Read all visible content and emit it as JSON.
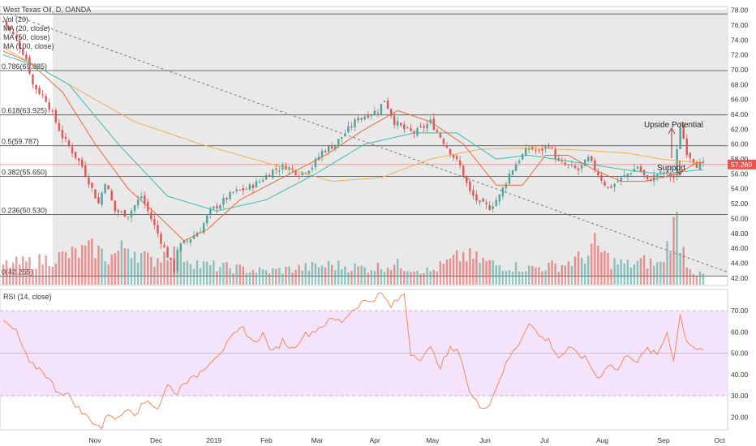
{
  "legend": {
    "title": "West Texas Oil, D, OANDA",
    "vol": "Vol (20)",
    "ma20": "MA (20, close)",
    "ma50": "MA (50, close)",
    "ma100": "MA (100, close)"
  },
  "rsi_title": "RSI (14, close)",
  "colors": {
    "up": "#4ea39a",
    "down": "#e05555",
    "ma20": "#f0673a",
    "ma50": "#3dbdb0",
    "ma100": "#f2b04f",
    "rsi_line": "#f08a5c",
    "rsi_band": "#f3e3fb",
    "price_badge": "#ef5350",
    "trend": "#777777",
    "shade": "#e9e9e9"
  },
  "chart_data": [
    {
      "type": "candlestick",
      "title": "West Texas Oil, D, OANDA",
      "x_months": [
        "Nov",
        "Dec",
        "2019",
        "Feb",
        "Mar",
        "Apr",
        "May",
        "Jun",
        "Jul",
        "Aug",
        "Sep",
        "Oct"
      ],
      "y_ticks": [
        "42.00",
        "44.00",
        "46.00",
        "48.00",
        "50.00",
        "52.00",
        "54.00",
        "56.00",
        "58.00",
        "60.00",
        "62.00",
        "64.00",
        "66.00",
        "68.00",
        "70.00",
        "72.00",
        "74.00",
        "76.00",
        "78.00"
      ],
      "ylim": [
        41,
        78.5
      ],
      "current_price": "57.260",
      "fib_levels": [
        {
          "label": "0.786(69.885)",
          "value": 69.885
        },
        {
          "label": "0.618(63.925)",
          "value": 63.925
        },
        {
          "label": "0.5(59.787)",
          "value": 59.787
        },
        {
          "label": "0.382(55.650)",
          "value": 55.65
        },
        {
          "label": "0.236(50.530)",
          "value": 50.53
        },
        {
          "label": "0(42.255)",
          "value": 42.255
        },
        {
          "label": "",
          "value": 77.5
        }
      ],
      "annotations": [
        "Upside Potential",
        "Support"
      ],
      "close_path": [
        [
          0,
          76.5
        ],
        [
          4,
          74
        ],
        [
          7,
          71.5
        ],
        [
          9,
          68
        ],
        [
          13,
          66
        ],
        [
          18,
          61
        ],
        [
          24,
          57
        ],
        [
          29,
          52
        ],
        [
          31,
          55
        ],
        [
          34,
          51
        ],
        [
          38,
          50.5
        ],
        [
          42,
          53
        ],
        [
          45,
          50
        ],
        [
          48,
          47
        ],
        [
          50,
          45
        ],
        [
          52,
          43
        ],
        [
          53,
          46
        ],
        [
          56,
          47
        ],
        [
          60,
          48.5
        ],
        [
          63,
          51
        ],
        [
          66,
          52
        ],
        [
          70,
          53.5
        ],
        [
          74,
          54
        ],
        [
          78,
          55
        ],
        [
          82,
          56.5
        ],
        [
          86,
          57
        ],
        [
          90,
          56
        ],
        [
          94,
          57
        ],
        [
          97,
          59
        ],
        [
          101,
          60
        ],
        [
          105,
          62
        ],
        [
          108,
          63.5
        ],
        [
          111,
          64
        ],
        [
          114,
          64.5
        ],
        [
          116,
          66
        ],
        [
          119,
          63
        ],
        [
          122,
          62
        ],
        [
          125,
          61.5
        ],
        [
          127,
          62
        ],
        [
          130,
          63
        ],
        [
          133,
          61
        ],
        [
          136,
          59
        ],
        [
          139,
          57
        ],
        [
          142,
          53.5
        ],
        [
          145,
          52
        ],
        [
          148,
          51.5
        ],
        [
          151,
          53
        ],
        [
          154,
          56
        ],
        [
          157,
          58
        ],
        [
          160,
          59.5
        ],
        [
          163,
          59
        ],
        [
          166,
          60
        ],
        [
          169,
          57.5
        ],
        [
          172,
          57
        ],
        [
          175,
          56.5
        ],
        [
          178,
          58
        ],
        [
          181,
          56
        ],
        [
          184,
          54
        ],
        [
          187,
          55
        ],
        [
          190,
          56
        ],
        [
          193,
          57
        ],
        [
          196,
          55
        ],
        [
          199,
          56
        ],
        [
          202,
          56
        ],
        [
          204,
          55.5
        ],
        [
          206,
          62.5
        ],
        [
          208,
          59
        ],
        [
          211,
          57.26
        ]
      ],
      "volume": [
        [
          0,
          0.3
        ],
        [
          10,
          0.35
        ],
        [
          20,
          0.45
        ],
        [
          28,
          0.55
        ],
        [
          32,
          0.4
        ],
        [
          38,
          0.6
        ],
        [
          45,
          0.35
        ],
        [
          50,
          0.5
        ],
        [
          55,
          0.45
        ],
        [
          60,
          0.3
        ],
        [
          70,
          0.25
        ],
        [
          80,
          0.2
        ],
        [
          90,
          0.25
        ],
        [
          100,
          0.3
        ],
        [
          110,
          0.25
        ],
        [
          120,
          0.3
        ],
        [
          130,
          0.2
        ],
        [
          140,
          0.45
        ],
        [
          150,
          0.3
        ],
        [
          160,
          0.25
        ],
        [
          170,
          0.3
        ],
        [
          178,
          0.45
        ],
        [
          180,
          0.6
        ],
        [
          185,
          0.35
        ],
        [
          190,
          0.3
        ],
        [
          195,
          0.35
        ],
        [
          200,
          0.3
        ],
        [
          205,
          1.0
        ],
        [
          206,
          0.7
        ],
        [
          208,
          0.35
        ],
        [
          211,
          0.15
        ]
      ],
      "ma100_path": [
        [
          0,
          73
        ],
        [
          8,
          71
        ],
        [
          20,
          68
        ],
        [
          40,
          63
        ],
        [
          60,
          60
        ],
        [
          80,
          57.5
        ],
        [
          100,
          55
        ],
        [
          115,
          55.5
        ],
        [
          130,
          58
        ],
        [
          145,
          59.3
        ],
        [
          160,
          59.5
        ],
        [
          175,
          59.2
        ],
        [
          190,
          58.8
        ],
        [
          200,
          58
        ],
        [
          211,
          57.5
        ]
      ],
      "ma50_path": [
        [
          0,
          72
        ],
        [
          10,
          70.5
        ],
        [
          20,
          68
        ],
        [
          35,
          60
        ],
        [
          50,
          53
        ],
        [
          65,
          51
        ],
        [
          80,
          52.5
        ],
        [
          95,
          56
        ],
        [
          110,
          60
        ],
        [
          125,
          61.5
        ],
        [
          138,
          61.5
        ],
        [
          150,
          58
        ],
        [
          160,
          58.5
        ],
        [
          175,
          57.5
        ],
        [
          190,
          56.5
        ],
        [
          200,
          56
        ],
        [
          211,
          56.5
        ]
      ],
      "ma20_path": [
        [
          0,
          72.5
        ],
        [
          8,
          71
        ],
        [
          18,
          67
        ],
        [
          28,
          60
        ],
        [
          38,
          54
        ],
        [
          48,
          50
        ],
        [
          55,
          47
        ],
        [
          62,
          48.5
        ],
        [
          72,
          52.5
        ],
        [
          85,
          55.5
        ],
        [
          98,
          58.5
        ],
        [
          110,
          62
        ],
        [
          120,
          64.5
        ],
        [
          130,
          63
        ],
        [
          140,
          60
        ],
        [
          150,
          54.5
        ],
        [
          158,
          54.5
        ],
        [
          165,
          58.5
        ],
        [
          172,
          58.5
        ],
        [
          180,
          56.5
        ],
        [
          188,
          55
        ],
        [
          195,
          55
        ],
        [
          200,
          55.5
        ],
        [
          205,
          56
        ],
        [
          211,
          57.5
        ]
      ]
    },
    {
      "type": "line",
      "title": "RSI (14, close)",
      "y_ticks": [
        "20.00",
        "30.00",
        "40.00",
        "50.00",
        "60.00",
        "70.00"
      ],
      "ylim": [
        14,
        80
      ],
      "band": [
        30,
        70
      ],
      "mid": 50,
      "values_path": [
        [
          0,
          65
        ],
        [
          4,
          60
        ],
        [
          8,
          45
        ],
        [
          12,
          42
        ],
        [
          16,
          33
        ],
        [
          20,
          30
        ],
        [
          24,
          22
        ],
        [
          28,
          17
        ],
        [
          30,
          15
        ],
        [
          32,
          22
        ],
        [
          35,
          19
        ],
        [
          38,
          25
        ],
        [
          40,
          22
        ],
        [
          44,
          28
        ],
        [
          47,
          24
        ],
        [
          50,
          35
        ],
        [
          53,
          31
        ],
        [
          55,
          37
        ],
        [
          58,
          38
        ],
        [
          61,
          43
        ],
        [
          64,
          48
        ],
        [
          67,
          52
        ],
        [
          70,
          58
        ],
        [
          73,
          62
        ],
        [
          76,
          55
        ],
        [
          79,
          59
        ],
        [
          82,
          50
        ],
        [
          85,
          56
        ],
        [
          88,
          52
        ],
        [
          91,
          58
        ],
        [
          94,
          60
        ],
        [
          97,
          63
        ],
        [
          100,
          66
        ],
        [
          103,
          65
        ],
        [
          106,
          70
        ],
        [
          109,
          74
        ],
        [
          112,
          75
        ],
        [
          115,
          78
        ],
        [
          118,
          72
        ],
        [
          120,
          75
        ],
        [
          122,
          78
        ],
        [
          124,
          50
        ],
        [
          127,
          48
        ],
        [
          130,
          52
        ],
        [
          133,
          44
        ],
        [
          136,
          52
        ],
        [
          139,
          50
        ],
        [
          142,
          31
        ],
        [
          145,
          25
        ],
        [
          148,
          26
        ],
        [
          151,
          38
        ],
        [
          154,
          48
        ],
        [
          157,
          55
        ],
        [
          160,
          65
        ],
        [
          163,
          58
        ],
        [
          166,
          56
        ],
        [
          169,
          48
        ],
        [
          172,
          52
        ],
        [
          175,
          50
        ],
        [
          178,
          46
        ],
        [
          181,
          38
        ],
        [
          184,
          45
        ],
        [
          187,
          42
        ],
        [
          190,
          50
        ],
        [
          193,
          46
        ],
        [
          196,
          52
        ],
        [
          199,
          49
        ],
        [
          202,
          60
        ],
        [
          204,
          47
        ],
        [
          206,
          68
        ],
        [
          208,
          56
        ],
        [
          211,
          52
        ]
      ]
    }
  ]
}
